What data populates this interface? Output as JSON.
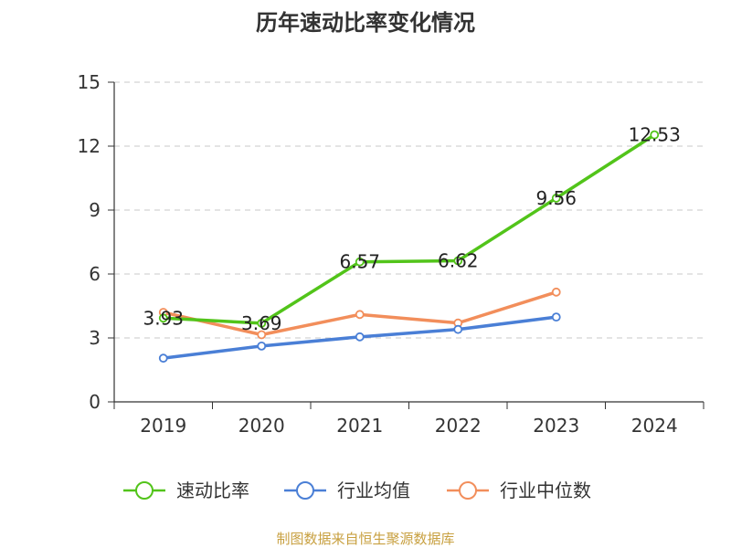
{
  "chart_data": {
    "type": "line",
    "title": "历年速动比率变化情况",
    "categories": [
      "2019",
      "2020",
      "2021",
      "2022",
      "2023",
      "2024"
    ],
    "ylim": [
      0,
      15
    ],
    "yticks": [
      0,
      3,
      6,
      9,
      12,
      15
    ],
    "grid": true,
    "legend_position": "bottom",
    "series": [
      {
        "name": "速动比率",
        "color": "#52c41a",
        "values": [
          3.93,
          3.69,
          6.57,
          6.62,
          9.56,
          12.53
        ],
        "labels": [
          "3.93",
          "3.69",
          "6.57",
          "6.62",
          "9.56",
          "12.53"
        ]
      },
      {
        "name": "行业均值",
        "color": "#4a7fd6",
        "values": [
          2.05,
          2.62,
          3.05,
          3.4,
          3.98,
          null
        ]
      },
      {
        "name": "行业中位数",
        "color": "#f28e5b",
        "values": [
          4.2,
          3.15,
          4.1,
          3.7,
          5.15,
          null
        ]
      }
    ]
  },
  "footer": {
    "source": "制图数据来自恒生聚源数据库"
  }
}
